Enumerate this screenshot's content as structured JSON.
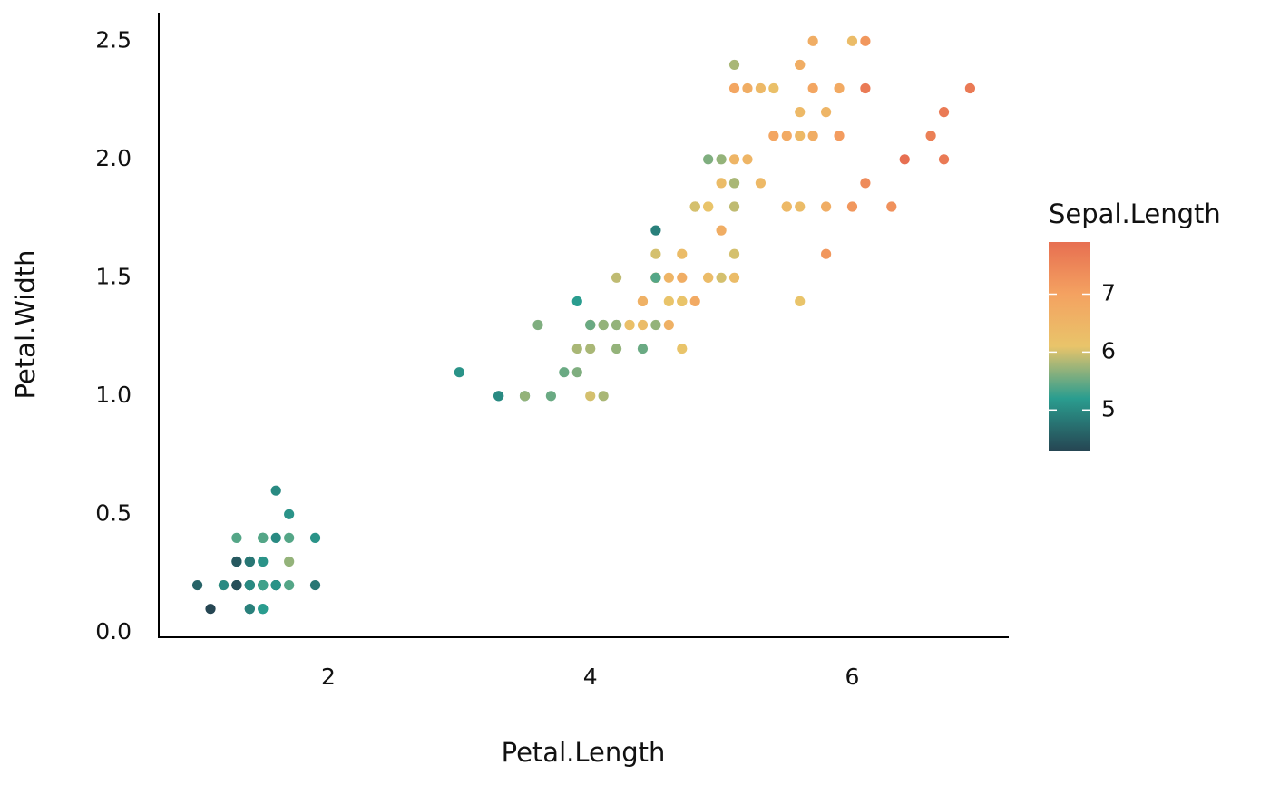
{
  "chart_data": {
    "type": "scatter",
    "x_label": "Petal.Length",
    "y_label": "Petal.Width",
    "color_label": "Sepal.Length",
    "x": [
      1.4,
      1.4,
      1.3,
      1.5,
      1.4,
      1.7,
      1.4,
      1.5,
      1.4,
      1.5,
      1.5,
      1.6,
      1.4,
      1.1,
      1.2,
      1.5,
      1.3,
      1.4,
      1.7,
      1.5,
      1.7,
      1.5,
      1.0,
      1.7,
      1.9,
      1.6,
      1.6,
      1.5,
      1.4,
      1.6,
      1.6,
      1.5,
      1.5,
      1.4,
      1.5,
      1.2,
      1.3,
      1.4,
      1.3,
      1.5,
      1.3,
      1.3,
      1.3,
      1.6,
      1.9,
      1.4,
      1.6,
      1.4,
      1.5,
      1.4,
      4.7,
      4.5,
      4.9,
      4.0,
      4.6,
      4.5,
      4.7,
      3.3,
      4.6,
      3.9,
      3.5,
      4.2,
      4.0,
      4.7,
      3.6,
      4.4,
      4.5,
      4.1,
      4.5,
      3.9,
      4.8,
      4.0,
      4.9,
      4.7,
      4.3,
      4.4,
      4.8,
      5.0,
      4.5,
      3.5,
      3.8,
      3.7,
      3.9,
      5.1,
      4.5,
      4.5,
      4.7,
      4.4,
      4.1,
      4.0,
      4.4,
      4.6,
      4.0,
      3.3,
      4.2,
      4.2,
      4.2,
      4.3,
      3.0,
      4.1,
      6.0,
      5.1,
      5.9,
      5.6,
      5.8,
      6.6,
      4.5,
      6.3,
      5.8,
      6.1,
      5.1,
      5.3,
      5.5,
      5.0,
      5.1,
      5.3,
      5.5,
      6.7,
      6.9,
      5.0,
      5.7,
      4.9,
      6.7,
      4.9,
      5.7,
      6.0,
      4.8,
      4.9,
      5.6,
      5.8,
      6.1,
      6.4,
      5.6,
      5.1,
      5.6,
      6.1,
      5.6,
      5.5,
      4.8,
      5.4,
      5.6,
      5.1,
      5.1,
      5.9,
      5.7,
      5.2,
      5.0,
      5.2,
      5.4,
      5.1
    ],
    "y": [
      0.2,
      0.2,
      0.2,
      0.2,
      0.2,
      0.4,
      0.3,
      0.2,
      0.2,
      0.1,
      0.2,
      0.2,
      0.1,
      0.1,
      0.2,
      0.4,
      0.4,
      0.3,
      0.3,
      0.3,
      0.2,
      0.4,
      0.2,
      0.5,
      0.2,
      0.2,
      0.4,
      0.2,
      0.2,
      0.2,
      0.2,
      0.4,
      0.1,
      0.2,
      0.2,
      0.2,
      0.2,
      0.1,
      0.2,
      0.2,
      0.3,
      0.3,
      0.2,
      0.6,
      0.4,
      0.3,
      0.2,
      0.2,
      0.2,
      0.2,
      1.4,
      1.5,
      1.5,
      1.3,
      1.5,
      1.3,
      1.6,
      1.0,
      1.3,
      1.4,
      1.0,
      1.5,
      1.0,
      1.4,
      1.3,
      1.4,
      1.5,
      1.0,
      1.5,
      1.1,
      1.8,
      1.3,
      1.5,
      1.2,
      1.3,
      1.4,
      1.4,
      1.7,
      1.5,
      1.0,
      1.1,
      1.0,
      1.2,
      1.6,
      1.5,
      1.6,
      1.5,
      1.3,
      1.3,
      1.3,
      1.2,
      1.4,
      1.2,
      1.0,
      1.3,
      1.2,
      1.3,
      1.3,
      1.1,
      1.3,
      2.5,
      1.9,
      2.1,
      1.8,
      2.2,
      2.1,
      1.7,
      1.8,
      1.8,
      2.5,
      2.0,
      1.9,
      2.1,
      2.0,
      2.4,
      2.3,
      1.8,
      2.2,
      2.3,
      1.5,
      2.3,
      2.0,
      2.0,
      1.8,
      2.1,
      1.8,
      1.8,
      1.8,
      2.1,
      1.6,
      1.9,
      2.0,
      2.2,
      1.5,
      1.4,
      2.3,
      2.4,
      1.8,
      1.8,
      2.1,
      2.4,
      2.3,
      1.9,
      2.3,
      2.5,
      2.3,
      1.9,
      2.0,
      2.3,
      1.8
    ],
    "color_values": [
      5.1,
      4.9,
      4.7,
      4.6,
      5.0,
      5.4,
      4.6,
      5.0,
      4.4,
      4.9,
      5.4,
      4.8,
      4.8,
      4.3,
      5.8,
      5.7,
      5.4,
      5.1,
      5.7,
      5.1,
      5.4,
      5.1,
      4.6,
      5.1,
      4.8,
      5.0,
      5.0,
      5.2,
      5.2,
      4.7,
      4.8,
      5.4,
      5.2,
      5.5,
      4.9,
      5.0,
      5.5,
      4.9,
      4.4,
      5.1,
      5.0,
      4.5,
      4.4,
      5.0,
      5.1,
      4.8,
      5.1,
      4.6,
      5.3,
      5.0,
      7.0,
      6.4,
      6.9,
      5.5,
      6.5,
      5.7,
      6.3,
      4.9,
      6.6,
      5.2,
      5.0,
      5.9,
      6.0,
      6.1,
      5.6,
      6.7,
      5.6,
      5.8,
      6.2,
      5.6,
      5.9,
      6.1,
      6.3,
      6.1,
      6.4,
      6.6,
      6.8,
      6.7,
      6.0,
      5.7,
      5.5,
      5.5,
      5.8,
      6.0,
      5.4,
      6.0,
      6.7,
      6.3,
      5.6,
      5.5,
      5.5,
      6.1,
      5.8,
      5.0,
      5.6,
      5.7,
      5.7,
      6.2,
      5.1,
      5.7,
      6.3,
      5.8,
      7.1,
      6.3,
      6.5,
      7.6,
      4.9,
      7.3,
      6.7,
      7.2,
      6.5,
      6.4,
      6.8,
      5.7,
      5.8,
      6.4,
      6.5,
      7.7,
      7.7,
      6.0,
      6.9,
      5.6,
      7.7,
      6.3,
      6.7,
      7.2,
      6.2,
      6.1,
      6.4,
      7.2,
      7.4,
      7.9,
      6.4,
      6.3,
      6.1,
      7.7,
      6.3,
      6.4,
      6.0,
      6.9,
      6.7,
      6.9,
      5.8,
      6.8,
      6.7,
      6.7,
      6.3,
      6.5,
      6.2,
      5.9
    ],
    "palette": [
      "#264653",
      "#2a9d8f",
      "#e9c46a",
      "#f4a261",
      "#e76f51"
    ],
    "clim": [
      4.3,
      7.9
    ],
    "cticks": [
      5,
      6,
      7
    ],
    "xlim": [
      0.705,
      7.195
    ],
    "xticks": [
      2,
      4,
      6
    ],
    "ylim": [
      -0.02,
      2.62
    ],
    "yticks": [
      {
        "value": 0,
        "label": "0.0"
      },
      0.5,
      {
        "value": 1,
        "label": "1.0"
      },
      1.5,
      {
        "value": 2,
        "label": "2.0"
      },
      2.5
    ]
  }
}
